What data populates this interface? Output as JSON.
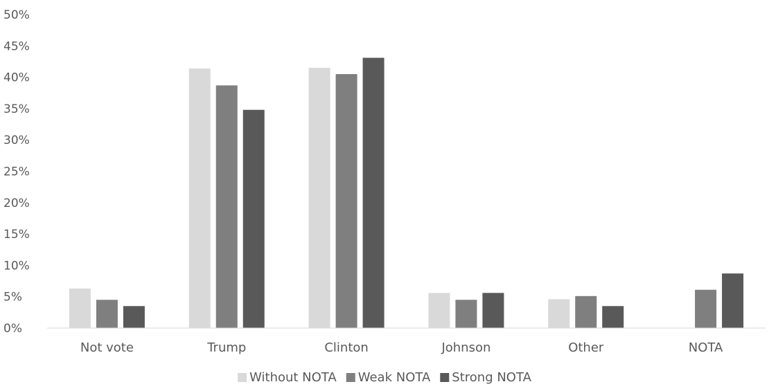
{
  "chart_data": {
    "type": "bar",
    "title": "",
    "xlabel": "",
    "ylabel": "",
    "categories": [
      "Not vote",
      "Trump",
      "Clinton",
      "Johnson",
      "Other",
      "NOTA"
    ],
    "series": [
      {
        "name": "Without NOTA",
        "color": "#d9d9d9",
        "values": [
          6.3,
          41.4,
          41.5,
          5.6,
          4.6,
          0
        ]
      },
      {
        "name": "Weak NOTA",
        "color": "#7f7f7f",
        "values": [
          4.5,
          38.7,
          40.5,
          4.5,
          5.1,
          6.1
        ]
      },
      {
        "name": "Strong NOTA",
        "color": "#595959",
        "values": [
          3.5,
          34.8,
          43.1,
          5.6,
          3.5,
          8.7
        ]
      }
    ],
    "ylim": [
      0,
      50
    ],
    "yticks": [
      0,
      5,
      10,
      15,
      20,
      25,
      30,
      35,
      40,
      45,
      50
    ],
    "ytick_labels": [
      "0%",
      "5%",
      "10%",
      "15%",
      "20%",
      "25%",
      "30%",
      "35%",
      "40%",
      "45%",
      "50%"
    ],
    "grid": false,
    "legend_position": "bottom"
  }
}
